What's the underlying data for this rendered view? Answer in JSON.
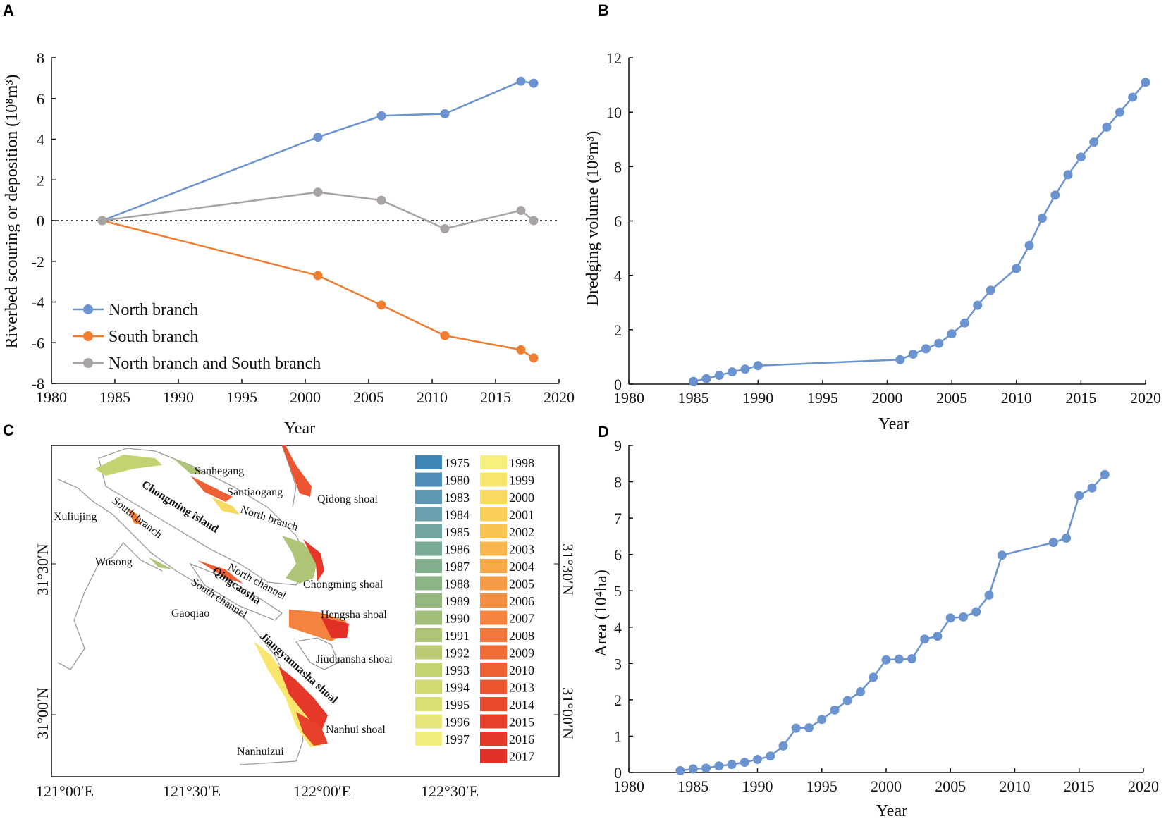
{
  "panels": {
    "a": "A",
    "b": "B",
    "c": "C",
    "d": "D"
  },
  "colors": {
    "blue": "#6b93cf",
    "orange": "#ef7d32",
    "gray": "#a9a4a4"
  },
  "chart_data": [
    {
      "id": "A",
      "type": "line",
      "xlabel": "Year",
      "ylabel": "Riverbed scouring or deposition (10⁸m³)",
      "xlim": [
        1980,
        2020
      ],
      "ylim": [
        -8,
        8
      ],
      "xticks": [
        "1980",
        "1985",
        "1990",
        "1995",
        "2000",
        "2005",
        "2010",
        "2015",
        "2020"
      ],
      "yticks": [
        "-8",
        "-6",
        "-4",
        "-2",
        "0",
        "2",
        "4",
        "6",
        "8"
      ],
      "zero_line": "dashed",
      "legend_position": "lower-left",
      "series": [
        {
          "name": "North branch",
          "color": "#6b93cf",
          "x": [
            1984,
            2001,
            2006,
            2011,
            2017,
            2018
          ],
          "values": [
            0,
            4.1,
            5.15,
            5.25,
            6.85,
            6.75
          ]
        },
        {
          "name": "South branch",
          "color": "#ef7d32",
          "x": [
            1984,
            2001,
            2006,
            2011,
            2017,
            2018
          ],
          "values": [
            0,
            -2.7,
            -4.15,
            -5.65,
            -6.35,
            -6.75
          ]
        },
        {
          "name": "North branch and South branch",
          "color": "#a9a4a4",
          "x": [
            1984,
            2001,
            2006,
            2011,
            2017,
            2018
          ],
          "values": [
            0,
            1.4,
            1.0,
            -0.4,
            0.5,
            0
          ]
        }
      ]
    },
    {
      "id": "B",
      "type": "line",
      "xlabel": "Year",
      "ylabel": "Dredging volume (10⁸m³)",
      "xlim": [
        1980,
        2020
      ],
      "ylim": [
        0,
        12
      ],
      "xticks": [
        "1980",
        "1985",
        "1990",
        "1995",
        "2000",
        "2005",
        "2010",
        "2015",
        "2020"
      ],
      "yticks": [
        "0",
        "2",
        "4",
        "6",
        "8",
        "10",
        "12"
      ],
      "series": [
        {
          "name": "Dredging volume",
          "color": "#6b93cf",
          "x": [
            1985,
            1986,
            1987,
            1988,
            1989,
            1990,
            2001,
            2002,
            2003,
            2004,
            2005,
            2006,
            2007,
            2008,
            2010,
            2011,
            2012,
            2013,
            2014,
            2015,
            2016,
            2017,
            2018,
            2019,
            2020
          ],
          "values": [
            0.1,
            0.2,
            0.32,
            0.45,
            0.55,
            0.68,
            0.9,
            1.1,
            1.3,
            1.5,
            1.85,
            2.25,
            2.9,
            3.45,
            4.25,
            5.1,
            6.1,
            6.95,
            7.7,
            8.35,
            8.9,
            9.45,
            10.0,
            10.55,
            11.1
          ]
        }
      ]
    },
    {
      "id": "D",
      "type": "line",
      "xlabel": "Year",
      "ylabel": "Area (10⁴ha)",
      "xlim": [
        1980,
        2020
      ],
      "ylim": [
        0,
        9
      ],
      "xticks": [
        "1980",
        "1985",
        "1990",
        "1995",
        "2000",
        "2005",
        "2010",
        "2015",
        "2020"
      ],
      "yticks": [
        "0",
        "1",
        "2",
        "3",
        "4",
        "5",
        "6",
        "7",
        "8",
        "9"
      ],
      "series": [
        {
          "name": "Area",
          "color": "#6b93cf",
          "x": [
            1984,
            1985,
            1986,
            1987,
            1988,
            1989,
            1990,
            1991,
            1992,
            1993,
            1994,
            1995,
            1996,
            1997,
            1998,
            1999,
            2000,
            2001,
            2002,
            2003,
            2004,
            2005,
            2006,
            2007,
            2008,
            2009,
            2013,
            2014,
            2015,
            2016,
            2017
          ],
          "values": [
            0.05,
            0.1,
            0.12,
            0.18,
            0.22,
            0.28,
            0.36,
            0.45,
            0.73,
            1.22,
            1.23,
            1.46,
            1.72,
            1.98,
            2.22,
            2.62,
            3.1,
            3.12,
            3.13,
            3.67,
            3.75,
            4.25,
            4.28,
            4.42,
            4.88,
            5.98,
            6.33,
            6.45,
            7.62,
            7.83,
            8.2
          ]
        }
      ]
    }
  ],
  "map": {
    "labels": {
      "sanhegang": "Sanhegang",
      "santiaogang": "Santiaogang",
      "qidong": "Qidong shoal",
      "chongming_island": "Chongming island",
      "north_branch": "North branch",
      "south_branch": "South branch",
      "xuliujing": "Xuliujing",
      "wusong": "Wusong",
      "north_channel": "North channel",
      "chongming_shoal": "Chongming shoal",
      "qingcaosha": "Qingcaosha",
      "south_channel": "South channel",
      "gaoqiao": "Gaoqiao",
      "hengsha": "Hengsha shoal",
      "jiangyannasha": "Jiangyannasha shoal",
      "jiuduansha": "Jiuduansha shoal",
      "nanhui": "Nanhui shoal",
      "nanhuizui": "Nanhuizui"
    },
    "lat_labels": [
      "31°30′N",
      "31°00′N"
    ],
    "lon_labels": [
      "121°00′E",
      "121°30′E",
      "122°00′E",
      "122°30′E"
    ],
    "legend_years_left": [
      "1975",
      "1980",
      "1983",
      "1984",
      "1985",
      "1986",
      "1987",
      "1988",
      "1989",
      "1990",
      "1991",
      "1992",
      "1993",
      "1994",
      "1995",
      "1996",
      "1997"
    ],
    "legend_colors_left": [
      "#3d86b8",
      "#4f8fb7",
      "#5e97b4",
      "#6c9fae",
      "#72a6a2",
      "#7aab96",
      "#84af8e",
      "#8db486",
      "#97b97f",
      "#a2be7b",
      "#aec476",
      "#bacb73",
      "#c5d271",
      "#d0d972",
      "#dbe075",
      "#e6e77a",
      "#f1ee7e"
    ],
    "legend_years_right": [
      "1998",
      "1999",
      "2000",
      "2001",
      "2002",
      "2003",
      "2004",
      "2005",
      "2006",
      "2007",
      "2008",
      "2009",
      "2010",
      "2013",
      "2014",
      "2015",
      "2016",
      "2017"
    ],
    "legend_colors_right": [
      "#f8f07c",
      "#f9e66d",
      "#f9da60",
      "#f9ce58",
      "#f9c252",
      "#f8b54d",
      "#f7a849",
      "#f69b45",
      "#f48f42",
      "#f3833e",
      "#f2773a",
      "#f06b36",
      "#ee6033",
      "#ec5530",
      "#ea4b2d",
      "#e8412b",
      "#e63829",
      "#e33027"
    ]
  }
}
